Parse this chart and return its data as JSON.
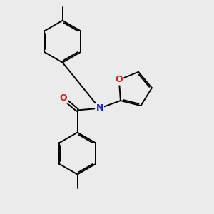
{
  "bg_color": "#ebebeb",
  "bond_color": "#000000",
  "N_color": "#2020cc",
  "O_color": "#cc2020",
  "bond_width": 1.4,
  "dbo": 0.055,
  "figsize": [
    3.0,
    3.0
  ],
  "dpi": 100,
  "xlim": [
    -2.5,
    5.5
  ],
  "ylim": [
    -4.0,
    4.5
  ]
}
